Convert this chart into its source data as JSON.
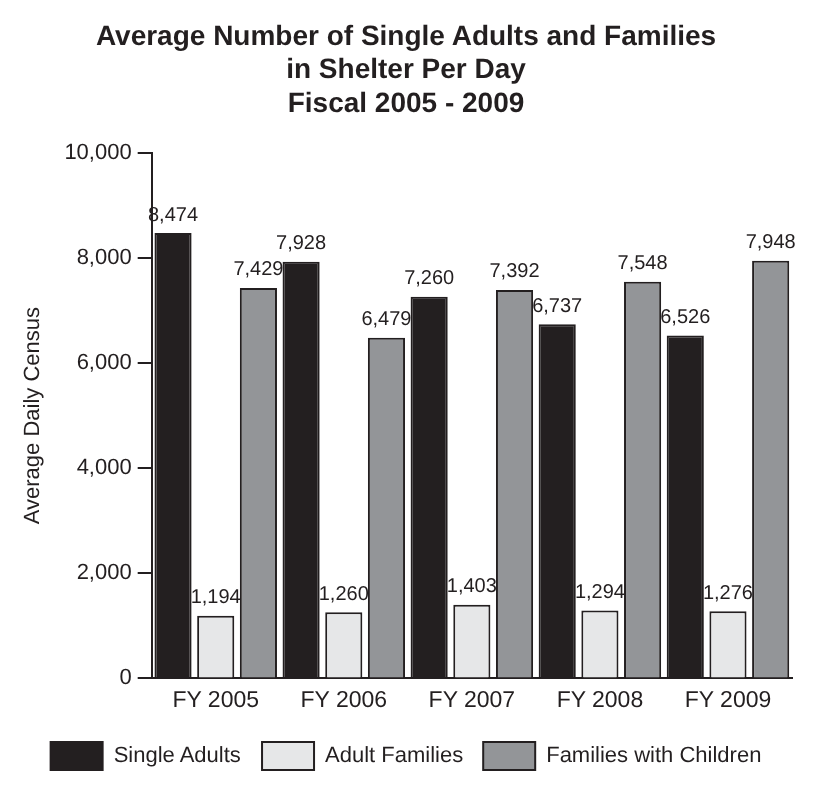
{
  "chart_data": {
    "type": "bar",
    "title": "Average Number of Single Adults and Families in Shelter Per Day",
    "subtitle": "Fiscal 2005 - 2009",
    "ylabel": "Average Daily Census",
    "categories": [
      "FY 2005",
      "FY 2006",
      "FY 2007",
      "FY 2008",
      "FY 2009"
    ],
    "series": [
      {
        "name": "Single Adults",
        "color": "#231f20",
        "values": [
          8474,
          7928,
          7260,
          6737,
          6526
        ],
        "value_labels": [
          "8,474",
          "7,928",
          "7,260",
          "6,737",
          "6,526"
        ]
      },
      {
        "name": "Adult Families",
        "color": "#e6e7e8",
        "values": [
          1194,
          1260,
          1403,
          1294,
          1276
        ],
        "value_labels": [
          "1,194",
          "1,260",
          "1,403",
          "1,294",
          "1,276"
        ]
      },
      {
        "name": "Families with Children",
        "color": "#939598",
        "values": [
          7429,
          6479,
          7392,
          7548,
          7948
        ],
        "value_labels": [
          "7,429",
          "6,479",
          "7,392",
          "7,548",
          "7,948"
        ]
      }
    ],
    "ylim": [
      0,
      10000
    ],
    "yticks": [
      0,
      {
        "value": 2000,
        "label": "2,000"
      },
      {
        "value": 4000,
        "label": "4,000"
      },
      {
        "value": 6000,
        "label": "6,000"
      },
      {
        "value": 8000,
        "label": "8,000"
      },
      {
        "value": 10000,
        "label": "10,000"
      }
    ],
    "grid": false,
    "legend": "bottom"
  }
}
